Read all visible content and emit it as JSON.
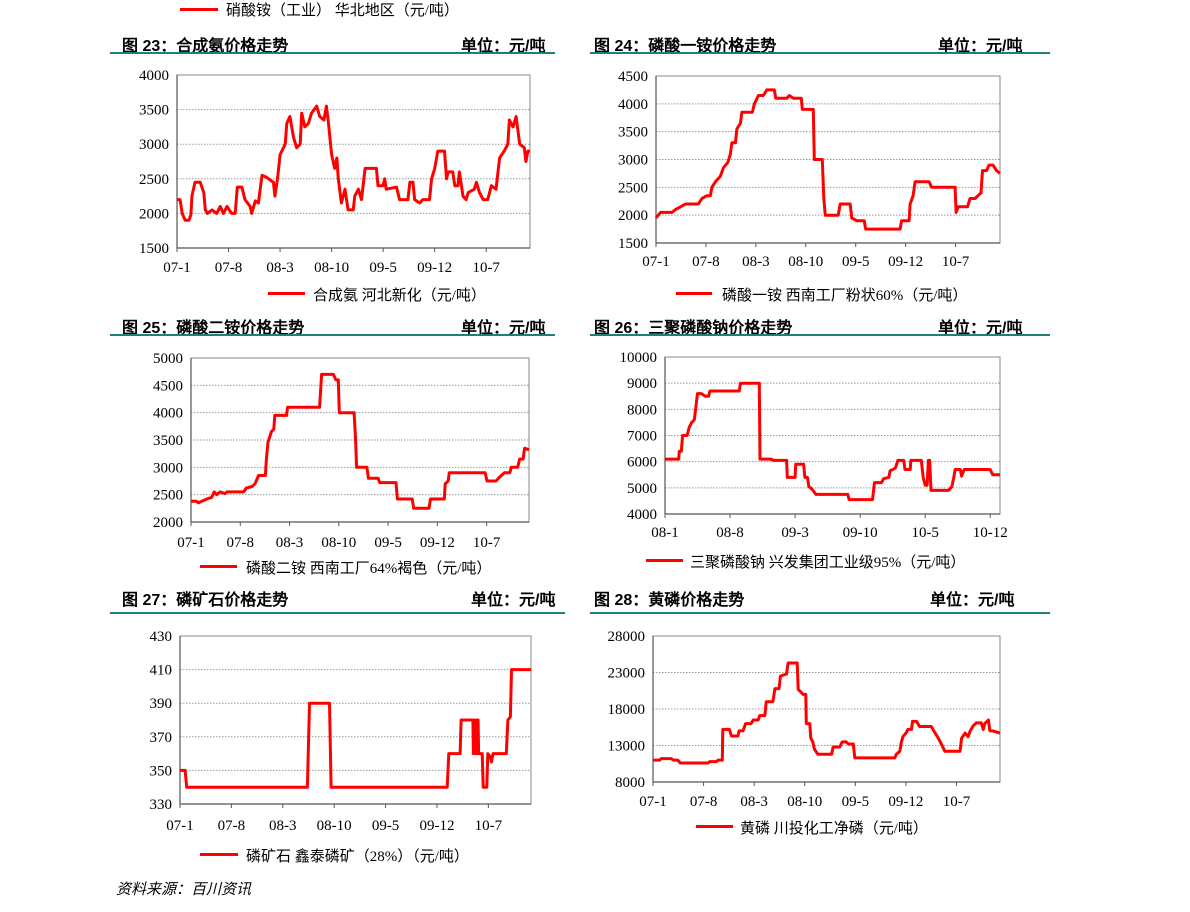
{
  "top_legend": {
    "label": "硝酸铵（工业） 华北地区（元/吨）"
  },
  "color_line": "#ff0000",
  "color_rule": "#1f7f7a",
  "source": "资料来源：百川资讯",
  "chart_data": [
    {
      "type": "line",
      "title": "图 23：合成氨价格走势",
      "unit": "单位：元/吨",
      "legend": "合成氨  河北新化（元/吨）",
      "ylim": [
        1500,
        4000
      ],
      "ystep": 500,
      "yticks": [
        "1500",
        "2000",
        "2500",
        "3000",
        "3500",
        "4000"
      ],
      "xticks": [
        "07-1",
        "07-8",
        "08-3",
        "08-10",
        "09-5",
        "09-12",
        "10-7"
      ],
      "xlim": [
        0,
        68.5
      ],
      "grid": true,
      "x": [
        0,
        0.6,
        1.0,
        1.6,
        2.3,
        2.7,
        2.9,
        3.5,
        4.5,
        5.2,
        5.5,
        5.9,
        6.8,
        7.7,
        8.4,
        9.0,
        9.7,
        10.6,
        11.3,
        11.7,
        12.6,
        13.2,
        14.2,
        14.5,
        15.2,
        15.8,
        16.5,
        17.4,
        18.7,
        19.0,
        19.5,
        20.0,
        21.0,
        21.3,
        21.9,
        22.6,
        23.2,
        23.9,
        24.2,
        24.8,
        25.5,
        26.1,
        27.1,
        27.7,
        28.5,
        29.0,
        29.4,
        30.0,
        30.6,
        31.0,
        31.3,
        31.9,
        32.6,
        33.2,
        34.2,
        34.5,
        35.2,
        35.8,
        36.5,
        38.7,
        39.0,
        40.0,
        40.3,
        40.6,
        42.6,
        43.2,
        44.8,
        45.2,
        45.8,
        46.1,
        47.1,
        47.7,
        49.0,
        49.4,
        50.0,
        50.6,
        51.9,
        52.3,
        52.6,
        53.5,
        53.9,
        54.5,
        54.8,
        55.5,
        56.1,
        56.5,
        57.7,
        58.1,
        58.7,
        59.4,
        60.3,
        61.0,
        61.9,
        62.6,
        63.5,
        64.2,
        64.5,
        65.2,
        65.8,
        66.5,
        67.4,
        67.7,
        68.1,
        68.5
      ],
      "y": [
        2200,
        2200,
        2000,
        1900,
        1900,
        1980,
        2250,
        2450,
        2450,
        2300,
        2050,
        2000,
        2050,
        2000,
        2100,
        2000,
        2100,
        2000,
        2000,
        2380,
        2380,
        2200,
        2100,
        2000,
        2180,
        2150,
        2550,
        2520,
        2450,
        2250,
        2500,
        2850,
        3000,
        3300,
        3400,
        3100,
        2950,
        3000,
        3450,
        3250,
        3300,
        3450,
        3550,
        3400,
        3350,
        3550,
        3300,
        2850,
        2650,
        2800,
        2500,
        2150,
        2350,
        2050,
        2050,
        2250,
        2350,
        2200,
        2650,
        2650,
        2400,
        2400,
        2500,
        2350,
        2380,
        2200,
        2200,
        2450,
        2450,
        2200,
        2150,
        2200,
        2200,
        2500,
        2650,
        2900,
        2900,
        2500,
        2600,
        2600,
        2400,
        2400,
        2600,
        2250,
        2200,
        2300,
        2350,
        2450,
        2300,
        2200,
        2200,
        2400,
        2350,
        2800,
        2900,
        3000,
        3350,
        3250,
        3400,
        3000,
        2950,
        2750,
        2900,
        2900
      ]
    },
    {
      "type": "line",
      "title": "图 24：磷酸一铵价格走势",
      "unit": "单位：元/吨",
      "legend": "磷酸一铵  西南工厂粉状60%（元/吨）",
      "ylim": [
        1500,
        4500
      ],
      "ystep": 500,
      "yticks": [
        "1500",
        "2000",
        "2500",
        "3000",
        "3500",
        "4000",
        "4500"
      ],
      "xticks": [
        "07-1",
        "07-8",
        "08-3",
        "08-10",
        "09-5",
        "09-12",
        "10-7"
      ],
      "xlim": [
        0,
        68.9
      ],
      "grid": true,
      "x": [
        0,
        0.9,
        3.2,
        3.9,
        4.9,
        5.9,
        6.9,
        8.5,
        9.2,
        10.2,
        10.9,
        11.2,
        11.9,
        12.9,
        13.5,
        14.4,
        14.9,
        15.2,
        15.9,
        16.2,
        16.9,
        17.2,
        19.3,
        19.7,
        20.5,
        21.5,
        22.2,
        23.7,
        24.0,
        26.2,
        26.7,
        27.5,
        29.1,
        29.3,
        31.5,
        31.7,
        33.3,
        33.6,
        33.9,
        36.5,
        36.9,
        38.9,
        39.2,
        40.2,
        41.7,
        42.0,
        48.9,
        49.2,
        50.7,
        50.9,
        51.5,
        51.9,
        54.7,
        55.2,
        59.9,
        60.1,
        60.5,
        62.4,
        62.9,
        63.9,
        64.5,
        65.1,
        65.4,
        66.2,
        66.7,
        67.5,
        68.2,
        68.9
      ],
      "y": [
        1950,
        2050,
        2050,
        2100,
        2150,
        2200,
        2200,
        2200,
        2300,
        2350,
        2350,
        2500,
        2600,
        2700,
        2850,
        2950,
        3100,
        3300,
        3300,
        3550,
        3650,
        3850,
        3850,
        4000,
        4150,
        4150,
        4250,
        4250,
        4100,
        4100,
        4150,
        4100,
        4100,
        3900,
        3900,
        3000,
        3000,
        2300,
        2000,
        2000,
        2200,
        2200,
        1950,
        1900,
        1900,
        1750,
        1750,
        1900,
        1900,
        2200,
        2350,
        2600,
        2600,
        2500,
        2500,
        2050,
        2150,
        2150,
        2300,
        2300,
        2350,
        2400,
        2800,
        2800,
        2900,
        2900,
        2800,
        2750
      ]
    },
    {
      "type": "line",
      "title": "图 25：磷酸二铵价格走势",
      "unit": "单位：元/吨",
      "legend": "磷酸二铵  西南工厂64%褐色（元/吨）",
      "ylim": [
        2000,
        5000
      ],
      "ystep": 500,
      "yticks": [
        "2000",
        "2500",
        "3000",
        "3500",
        "4000",
        "4500",
        "5000"
      ],
      "xticks": [
        "07-1",
        "07-8",
        "08-3",
        "08-10",
        "09-5",
        "09-12",
        "10-7"
      ],
      "xlim": [
        0,
        68.6
      ],
      "grid": true,
      "x": [
        0,
        1.1,
        1.5,
        2.2,
        3.2,
        4.2,
        4.7,
        5.2,
        5.9,
        6.9,
        7.3,
        10.7,
        11.2,
        12.4,
        13.0,
        13.7,
        15.1,
        15.3,
        15.6,
        16.3,
        16.8,
        17.0,
        19.4,
        19.6,
        26.1,
        26.5,
        28.9,
        29.4,
        29.9,
        30.1,
        33.1,
        33.4,
        33.6,
        35.7,
        36.0,
        38.0,
        38.3,
        41.6,
        41.9,
        44.9,
        45.2,
        48.3,
        48.6,
        51.4,
        51.6,
        52.2,
        52.4,
        59.7,
        60.1,
        61.9,
        62.6,
        63.6,
        64.7,
        65.0,
        66.3,
        66.7,
        67.4,
        67.7,
        68.6
      ],
      "y": [
        2380,
        2380,
        2350,
        2380,
        2420,
        2450,
        2550,
        2500,
        2550,
        2520,
        2550,
        2550,
        2620,
        2650,
        2700,
        2850,
        2850,
        3150,
        3450,
        3650,
        3700,
        3950,
        3950,
        4100,
        4100,
        4700,
        4700,
        4600,
        4600,
        4000,
        4000,
        3500,
        3000,
        3000,
        2800,
        2800,
        2720,
        2720,
        2420,
        2420,
        2250,
        2250,
        2420,
        2420,
        2700,
        2750,
        2900,
        2900,
        2750,
        2750,
        2820,
        2900,
        2900,
        3000,
        3000,
        3150,
        3150,
        3350,
        3320
      ]
    },
    {
      "type": "line",
      "title": "图 26：三聚磷酸钠价格走势",
      "unit": "单位：元/吨",
      "legend": "三聚磷酸钠  兴发集团工业级95%（元/吨）",
      "ylim": [
        4000,
        10000
      ],
      "ystep": 1000,
      "yticks": [
        "4000",
        "5000",
        "6000",
        "7000",
        "8000",
        "9000",
        "10000"
      ],
      "xticks": [
        "08-1",
        "08-8",
        "09-3",
        "09-10",
        "10-5",
        "10-12"
      ],
      "xlim": [
        0,
        51.5
      ],
      "grid": true,
      "x": [
        0,
        2.1,
        2.2,
        2.5,
        2.7,
        3.4,
        3.7,
        4.1,
        4.5,
        4.7,
        5.0,
        5.6,
        6.2,
        6.7,
        6.9,
        11.4,
        11.6,
        14.5,
        14.6,
        16.3,
        16.7,
        18.7,
        18.8,
        20.0,
        20.1,
        21.3,
        21.5,
        21.9,
        22.1,
        22.6,
        23.2,
        28.1,
        28.3,
        31.9,
        32.2,
        33.3,
        33.6,
        34.4,
        34.6,
        35.4,
        35.8,
        36.7,
        36.9,
        37.7,
        37.8,
        39.4,
        39.7,
        40.0,
        40.3,
        40.5,
        40.7,
        40.9,
        43.6,
        44.1,
        44.4,
        44.6,
        45.4,
        45.6,
        46.0,
        50.0,
        50.4,
        51.5
      ],
      "y": [
        6100,
        6100,
        6400,
        6400,
        7000,
        7000,
        7300,
        7500,
        7600,
        8000,
        8600,
        8600,
        8500,
        8500,
        8700,
        8700,
        9000,
        9000,
        6100,
        6100,
        6050,
        6050,
        5400,
        5400,
        5900,
        5900,
        5400,
        5400,
        5050,
        4950,
        4750,
        4750,
        4550,
        4550,
        5200,
        5200,
        5350,
        5400,
        5650,
        5750,
        6050,
        6050,
        5700,
        5700,
        6050,
        6050,
        5400,
        5100,
        5100,
        6050,
        6050,
        4900,
        4900,
        5050,
        5400,
        5700,
        5700,
        5450,
        5700,
        5700,
        5500,
        5500
      ]
    },
    {
      "type": "line",
      "title": "图 27：磷矿石价格走势",
      "unit": "单位：元/吨",
      "legend": "磷矿石  鑫泰磷矿（28%）（元/吨）",
      "ylim": [
        330,
        430
      ],
      "ystep": 20,
      "yticks": [
        "330",
        "350",
        "370",
        "390",
        "410",
        "430"
      ],
      "xticks": [
        "07-1",
        "07-8",
        "08-3",
        "08-10",
        "09-5",
        "09-12",
        "10-7"
      ],
      "xlim": [
        0,
        68.3
      ],
      "grid": true,
      "x": [
        0,
        1.0,
        1.3,
        24.8,
        25.2,
        29.1,
        29.4,
        52.0,
        52.3,
        54.5,
        54.7,
        57.0,
        57.1,
        57.3,
        57.5,
        57.7,
        57.8,
        58.0,
        58.1,
        58.8,
        59.0,
        59.7,
        59.9,
        60.4,
        60.6,
        60.9,
        63.5,
        63.8,
        64.3,
        64.5,
        68.3
      ],
      "y": [
        350,
        350,
        340,
        340,
        390,
        390,
        340,
        340,
        360,
        360,
        380,
        380,
        360,
        380,
        360,
        380,
        360,
        380,
        360,
        360,
        340,
        340,
        360,
        358,
        355,
        360,
        360,
        380,
        382,
        410,
        410
      ]
    },
    {
      "type": "line",
      "title": "图 28：黄磷价格走势",
      "unit": "单位：元/吨",
      "legend": "黄磷  川投化工净磷（元/吨）",
      "ylim": [
        8000,
        28000
      ],
      "ystep": 5000,
      "yticks": [
        "8000",
        "13000",
        "18000",
        "23000",
        "28000"
      ],
      "xticks": [
        "07-1",
        "07-8",
        "08-3",
        "08-10",
        "09-5",
        "09-12",
        "10-7"
      ],
      "xlim": [
        0,
        68.6
      ],
      "grid": true,
      "x": [
        0,
        1.3,
        1.6,
        3.6,
        4.0,
        4.9,
        5.4,
        10.9,
        11.2,
        12.5,
        12.9,
        13.7,
        13.8,
        15.1,
        15.5,
        16.8,
        17.0,
        17.8,
        18.3,
        19.4,
        19.8,
        20.8,
        21.1,
        22.1,
        22.4,
        23.7,
        24.1,
        24.9,
        25.2,
        26.4,
        26.7,
        28.5,
        28.7,
        29.7,
        30.2,
        30.3,
        31.0,
        31.2,
        31.6,
        31.9,
        32.6,
        35.3,
        35.6,
        36.9,
        37.4,
        38.2,
        38.6,
        39.6,
        39.9,
        47.8,
        48.1,
        48.8,
        49.1,
        49.4,
        50.1,
        50.4,
        51.1,
        51.3,
        52.1,
        52.7,
        55.0,
        55.7,
        56.4,
        57.0,
        57.7,
        60.7,
        61.0,
        61.7,
        62.3,
        62.7,
        63.3,
        63.9,
        64.9,
        65.3,
        65.6,
        66.3,
        66.6,
        67.2,
        68.6
      ],
      "y": [
        11000,
        11000,
        11200,
        11200,
        11000,
        11000,
        10600,
        10600,
        10800,
        10800,
        11000,
        11000,
        15200,
        15200,
        14300,
        14300,
        15000,
        15000,
        16000,
        16000,
        16500,
        16500,
        17100,
        17100,
        19000,
        19000,
        20800,
        20800,
        22500,
        22800,
        24300,
        24300,
        20700,
        20000,
        20000,
        16000,
        16000,
        14000,
        13500,
        12500,
        11800,
        11800,
        12800,
        12800,
        13500,
        13500,
        13200,
        13200,
        11300,
        11300,
        11800,
        12200,
        13500,
        14200,
        14800,
        15200,
        15200,
        16300,
        16300,
        15600,
        15600,
        14800,
        14000,
        13200,
        12200,
        12200,
        14000,
        14700,
        14200,
        15000,
        15700,
        16100,
        16100,
        15200,
        16000,
        16500,
        15000,
        15000,
        14700
      ]
    }
  ]
}
